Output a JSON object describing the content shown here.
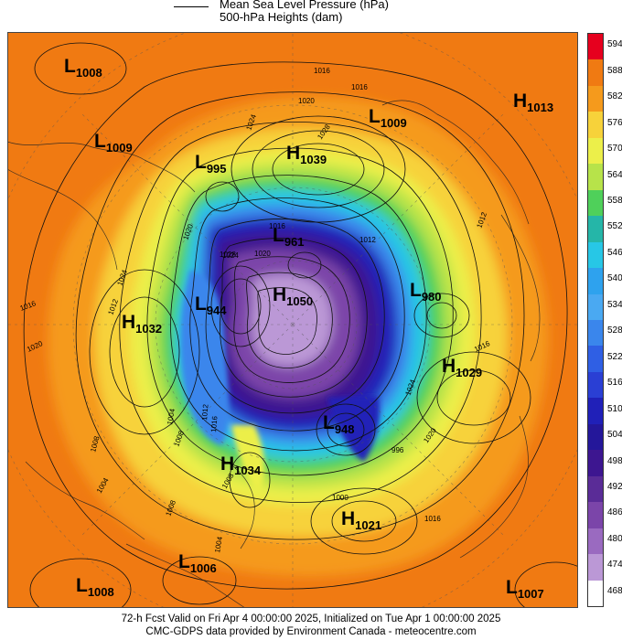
{
  "legend": {
    "line1": "Mean Sea Level Pressure (hPa)",
    "line2": "500-hPa Heights (dam)"
  },
  "footer": {
    "line1": "72-h Fcst Valid on Fri Apr  4 00:00:00 2025, Initialized on Tue Apr  1 00:00:00 2025",
    "line2": "CMC-GDPS data provided by Environment Canada - meteocentre.com"
  },
  "colors": {
    "594": "#e6001e",
    "588": "#f07a12",
    "582": "#f59a1c",
    "576": "#f7d23a",
    "570": "#ecef4a",
    "564": "#b7e34a",
    "558": "#4fd05a",
    "552": "#25b6a8",
    "546": "#27c7e6",
    "540": "#2ea2ee",
    "534": "#4aa9f2",
    "528": "#3a86ec",
    "522": "#2f5fe4",
    "516": "#2a3fd4",
    "510": "#2020b8",
    "504": "#24179a",
    "498": "#3d1690",
    "492": "#5a2c97",
    "486": "#7b45a9",
    "480": "#9a6ac0",
    "474": "#bb98d6",
    "468": "#ffffff"
  },
  "scale": [
    594,
    588,
    582,
    576,
    570,
    564,
    558,
    552,
    546,
    540,
    534,
    528,
    522,
    516,
    510,
    504,
    498,
    492,
    486,
    480,
    474,
    468
  ],
  "centers": [
    {
      "type": "L",
      "value": "1008"
    },
    {
      "type": "L",
      "value": "1009"
    },
    {
      "type": "H",
      "value": "1039"
    },
    {
      "type": "L",
      "value": "1009"
    },
    {
      "type": "H",
      "value": "1013"
    },
    {
      "type": "L",
      "value": "995"
    },
    {
      "type": "L",
      "value": "961"
    },
    {
      "type": "H",
      "value": "1032"
    },
    {
      "type": "L",
      "value": "944"
    },
    {
      "type": "H",
      "value": "1050"
    },
    {
      "type": "L",
      "value": "980"
    },
    {
      "type": "H",
      "value": "1029"
    },
    {
      "type": "L",
      "value": "948"
    },
    {
      "type": "H",
      "value": "1034"
    },
    {
      "type": "H",
      "value": "1021"
    },
    {
      "type": "L",
      "value": "1006"
    },
    {
      "type": "L",
      "value": "1008"
    },
    {
      "type": "L",
      "value": "1007"
    }
  ],
  "isobar_labels": [
    "1016",
    "1020",
    "1024",
    "1028",
    "1016",
    "1016",
    "1020",
    "1024",
    "1012",
    "1008",
    "1004",
    "1016",
    "1012",
    "1008",
    "1012",
    "1016",
    "1016",
    "1024",
    "1020",
    "1012",
    "1016",
    "1020",
    "1028",
    "1020",
    "1024",
    "1004",
    "1008",
    "1000",
    "996",
    "1008",
    "1004"
  ]
}
